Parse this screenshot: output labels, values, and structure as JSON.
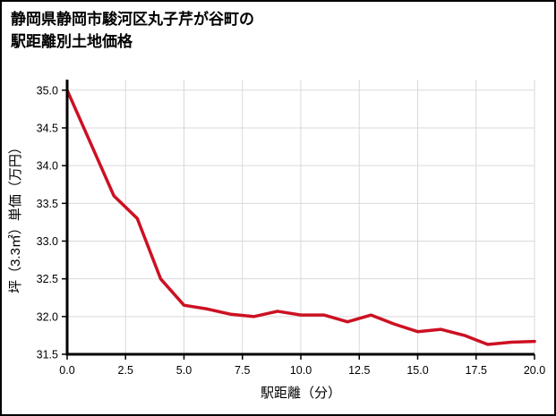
{
  "title": {
    "line1": "静岡県静岡市駿河区丸子芹が谷町の",
    "line2": "駅距離別土地価格"
  },
  "chart_data": {
    "type": "line",
    "title": "静岡県静岡市駿河区丸子芹が谷町の駅距離別土地価格",
    "xlabel": "駅距離（分）",
    "ylabel": "坪（3.3㎡）単価（万円）",
    "x": [
      0,
      1,
      2,
      3,
      4,
      5,
      6,
      7,
      8,
      9,
      10,
      11,
      12,
      13,
      14,
      15,
      16,
      17,
      18,
      19,
      20
    ],
    "series": [
      {
        "name": "駅距離別土地価格",
        "values": [
          35.0,
          34.3,
          33.6,
          33.3,
          32.5,
          32.15,
          32.1,
          32.03,
          32.0,
          32.07,
          32.02,
          32.02,
          31.93,
          32.02,
          31.9,
          31.8,
          31.83,
          31.75,
          31.63,
          31.66,
          31.67
        ]
      }
    ],
    "xlim": [
      0,
      20
    ],
    "ylim": [
      31.5,
      35.0
    ],
    "x_ticks": [
      0.0,
      2.5,
      5.0,
      7.5,
      10.0,
      12.5,
      15.0,
      17.5,
      20.0
    ],
    "y_ticks": [
      31.5,
      32.0,
      32.5,
      33.0,
      33.5,
      34.0,
      34.5,
      35.0
    ],
    "grid": true,
    "legend": "none",
    "line_color": "#cc1122",
    "grid_color": "#d9d9d9",
    "axis_color": "#000000",
    "background_color": "#ffffff"
  }
}
